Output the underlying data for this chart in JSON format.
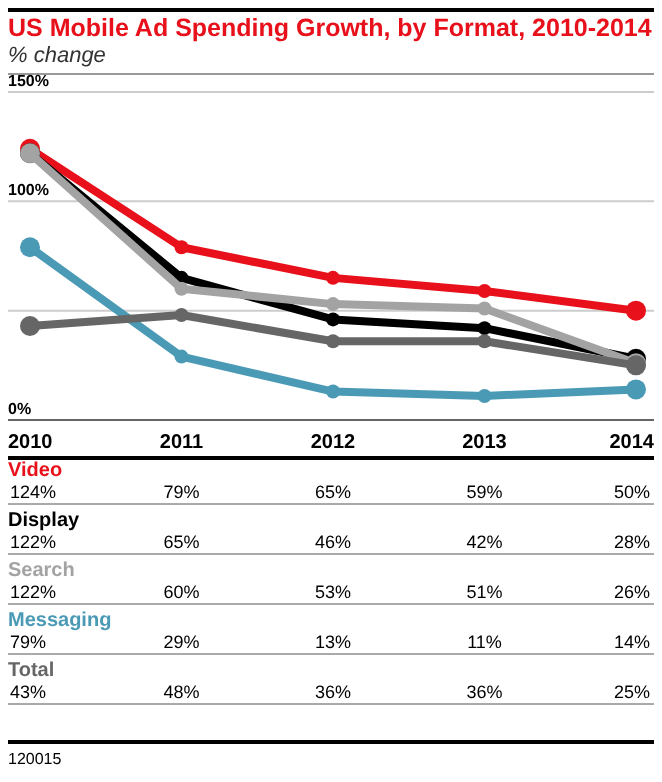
{
  "chart_data": {
    "type": "line",
    "title": "US Mobile Ad Spending Growth, by Format, 2010-2014",
    "subtitle": "% change",
    "categories": [
      "2010",
      "2011",
      "2012",
      "2013",
      "2014"
    ],
    "series": [
      {
        "name": "Video",
        "color": "#e8101a",
        "values": [
          124,
          79,
          65,
          59,
          50
        ],
        "value_labels": [
          "124%",
          "79%",
          "65%",
          "59%",
          "50%"
        ]
      },
      {
        "name": "Display",
        "color": "#000000",
        "values": [
          122,
          65,
          46,
          42,
          28
        ],
        "value_labels": [
          "122%",
          "65%",
          "46%",
          "42%",
          "28%"
        ]
      },
      {
        "name": "Search",
        "color": "#a3a3a3",
        "values": [
          122,
          60,
          53,
          51,
          26
        ],
        "value_labels": [
          "122%",
          "60%",
          "53%",
          "51%",
          "26%"
        ]
      },
      {
        "name": "Messaging",
        "color": "#4a9ab5",
        "values": [
          79,
          29,
          13,
          11,
          14
        ],
        "value_labels": [
          "79%",
          "29%",
          "13%",
          "11%",
          "14%"
        ]
      },
      {
        "name": "Total",
        "color": "#666666",
        "values": [
          43,
          48,
          36,
          36,
          25
        ],
        "value_labels": [
          "43%",
          "48%",
          "36%",
          "36%",
          "25%"
        ]
      }
    ],
    "ylim": [
      0,
      150
    ],
    "yticks": [
      {
        "value": 0,
        "label": "0%"
      },
      {
        "value": 50,
        "label": null
      },
      {
        "value": 100,
        "label": "100%"
      },
      {
        "value": 150,
        "label": "150%"
      }
    ],
    "grid": "y",
    "marker": "circle",
    "annotations": [
      "120015"
    ]
  }
}
